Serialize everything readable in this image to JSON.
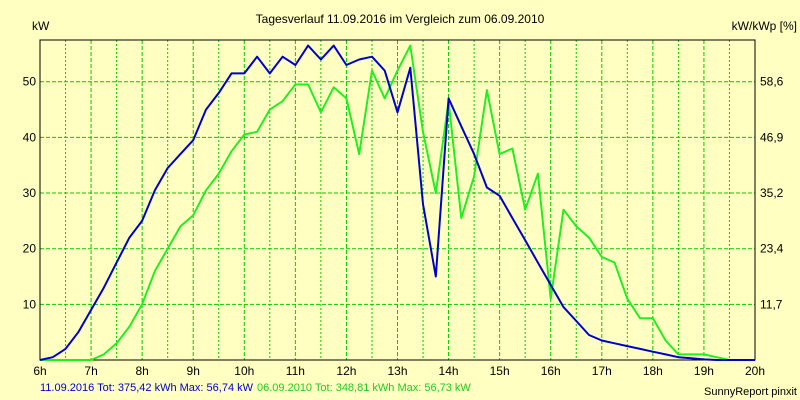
{
  "colors": {
    "background": "#ffffc1",
    "grid": "#00cc00",
    "series_2016": "#0000cc",
    "series_2010": "#22ee22"
  },
  "footer": {
    "series_2016_text": "11.09.2016 Tot: 375,42 kWh Max: 56,74 kW",
    "series_2010_text": "06.09.2010 Tot: 348,81 kWh Max: 56,73 kW",
    "credit": "SunnyReport pinxit"
  },
  "chart_data": {
    "type": "line",
    "title": "Tagesverlauf 11.09.2016 im Vergleich zum 06.09.2010",
    "ylabel": "kW",
    "y2label": "kW/kWp [%]",
    "xlim": [
      6,
      20
    ],
    "ylim": [
      0,
      57.5
    ],
    "x_ticks": [
      "6h",
      "7h",
      "8h",
      "9h",
      "10h",
      "11h",
      "12h",
      "13h",
      "14h",
      "15h",
      "16h",
      "17h",
      "18h",
      "19h",
      "20h"
    ],
    "y_ticks": [
      10,
      20,
      30,
      40,
      50
    ],
    "y2_ticks": [
      {
        "label": "11,7",
        "value": 10
      },
      {
        "label": "23,4",
        "value": 20
      },
      {
        "label": "35,2",
        "value": 30
      },
      {
        "label": "46,9",
        "value": 40
      },
      {
        "label": "58,6",
        "value": 50
      }
    ],
    "series": [
      {
        "name": "11.09.2016",
        "color": "#0000cc",
        "x": [
          6,
          6.25,
          6.5,
          6.75,
          7,
          7.25,
          7.5,
          7.75,
          8,
          8.25,
          8.5,
          8.75,
          9,
          9.25,
          9.5,
          9.75,
          10,
          10.25,
          10.5,
          10.75,
          11,
          11.25,
          11.5,
          11.75,
          12,
          12.25,
          12.5,
          12.75,
          13,
          13.25,
          13.5,
          13.75,
          14,
          14.25,
          14.5,
          14.75,
          15,
          15.25,
          15.5,
          15.75,
          16,
          16.25,
          16.5,
          16.75,
          17,
          17.25,
          17.5,
          17.75,
          18,
          18.25,
          18.5,
          18.75,
          19,
          19.25,
          19.5,
          19.75,
          20
        ],
        "y": [
          0,
          0.5,
          2,
          5,
          9,
          13,
          17.5,
          22,
          25,
          30.5,
          34.5,
          37,
          39.5,
          45,
          48,
          51.5,
          51.5,
          54.5,
          51.5,
          54.5,
          53,
          56.5,
          54,
          56.5,
          53,
          54,
          54.5,
          52,
          44.5,
          52.5,
          28,
          15,
          47,
          42,
          37,
          31,
          29.5,
          25.5,
          21.5,
          17.5,
          13.5,
          9.5,
          7,
          4.5,
          3.5,
          3,
          2.5,
          2,
          1.5,
          1,
          0.5,
          0.3,
          0.1,
          0,
          0,
          0,
          0
        ]
      },
      {
        "name": "06.09.2010",
        "color": "#22ee22",
        "x": [
          6,
          6.25,
          6.5,
          6.75,
          7,
          7.25,
          7.5,
          7.75,
          8,
          8.25,
          8.5,
          8.75,
          9,
          9.25,
          9.5,
          9.75,
          10,
          10.25,
          10.5,
          10.75,
          11,
          11.25,
          11.5,
          11.75,
          12,
          12.25,
          12.5,
          12.75,
          13,
          13.25,
          13.5,
          13.75,
          14,
          14.25,
          14.5,
          14.75,
          15,
          15.25,
          15.5,
          15.75,
          16,
          16.25,
          16.5,
          16.75,
          17,
          17.25,
          17.5,
          17.75,
          18,
          18.25,
          18.5,
          18.75,
          19,
          19.25,
          19.5,
          19.75,
          20
        ],
        "y": [
          0,
          0,
          0,
          0,
          0,
          1,
          3,
          6,
          10,
          16,
          20,
          24,
          26,
          30.5,
          33.5,
          37.5,
          40.5,
          41,
          45,
          46.5,
          49.5,
          49.5,
          44.5,
          49,
          47,
          37,
          52,
          47,
          52,
          56.5,
          41,
          30,
          46.5,
          25.5,
          33,
          48.5,
          37,
          38,
          27,
          33.5,
          11,
          27,
          24,
          22,
          18.5,
          17.5,
          11,
          7.5,
          7.5,
          3.5,
          1,
          1,
          1,
          0.5,
          0,
          0,
          0
        ]
      }
    ]
  }
}
